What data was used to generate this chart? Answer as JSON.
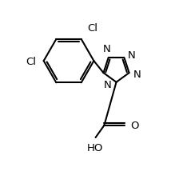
{
  "background_color": "#ffffff",
  "line_color": "#000000",
  "line_width": 1.5,
  "font_size": 9.5,
  "figsize": [
    2.24,
    2.3
  ],
  "dpi": 100,
  "xlim": [
    0,
    10
  ],
  "ylim": [
    0,
    10.5
  ]
}
